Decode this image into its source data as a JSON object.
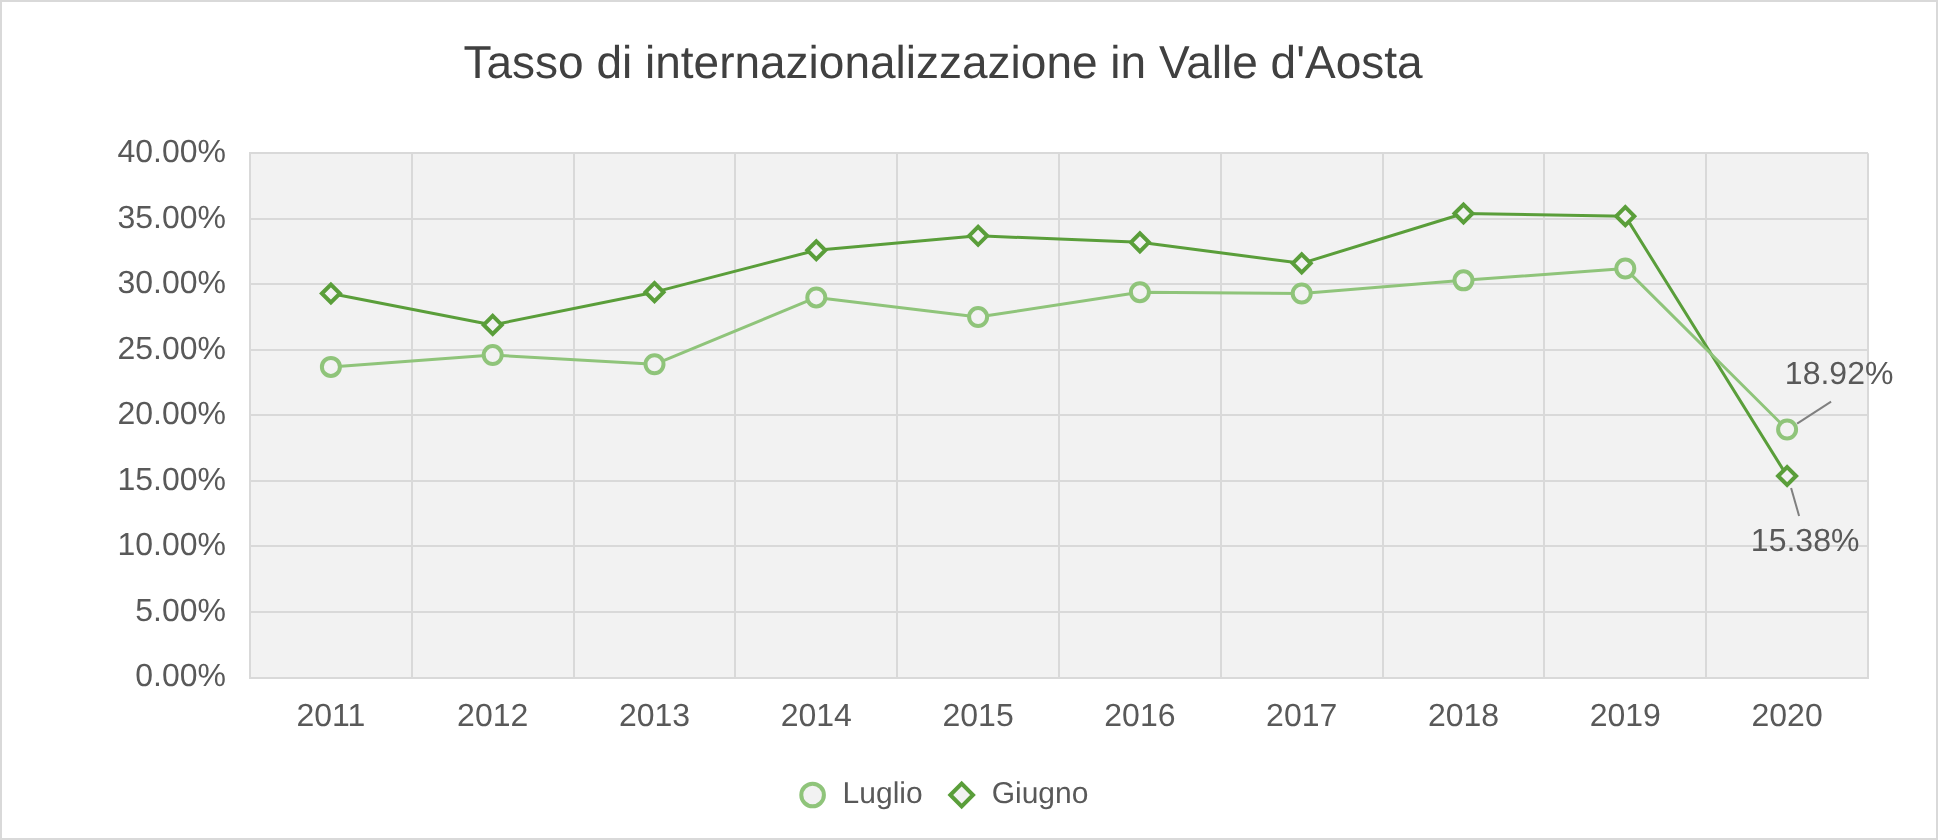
{
  "chart_data": {
    "type": "line",
    "title": "Tasso di internazionalizzazione in Valle d'Aosta",
    "categories": [
      "2011",
      "2012",
      "2013",
      "2014",
      "2015",
      "2016",
      "2017",
      "2018",
      "2019",
      "2020"
    ],
    "series": [
      {
        "name": "Luglio",
        "color": "#8fc47a",
        "marker": "circle",
        "values": [
          23.7,
          24.6,
          23.9,
          29.0,
          27.5,
          29.4,
          29.3,
          30.3,
          31.2,
          18.92
        ],
        "value_labels": [
          null,
          null,
          null,
          null,
          null,
          null,
          null,
          null,
          null,
          "18.92%"
        ]
      },
      {
        "name": "Giugno",
        "color": "#5a9e3a",
        "marker": "diamond",
        "values": [
          29.3,
          26.9,
          29.4,
          32.6,
          33.7,
          33.2,
          31.6,
          35.4,
          35.2,
          15.38
        ],
        "value_labels": [
          null,
          null,
          null,
          null,
          null,
          null,
          null,
          null,
          null,
          "15.38%"
        ]
      }
    ],
    "ylim": [
      0,
      40
    ],
    "yticks": [
      {
        "value": 0,
        "label": "0.00%"
      },
      {
        "value": 5,
        "label": "5.00%"
      },
      {
        "value": 10,
        "label": "10.00%"
      },
      {
        "value": 15,
        "label": "15.00%"
      },
      {
        "value": 20,
        "label": "20.00%"
      },
      {
        "value": 25,
        "label": "25.00%"
      },
      {
        "value": 30,
        "label": "30.00%"
      },
      {
        "value": 35,
        "label": "35.00%"
      },
      {
        "value": 40,
        "label": "40.00%"
      }
    ],
    "grid": true,
    "legend": "bottom",
    "line_style": "solid"
  }
}
